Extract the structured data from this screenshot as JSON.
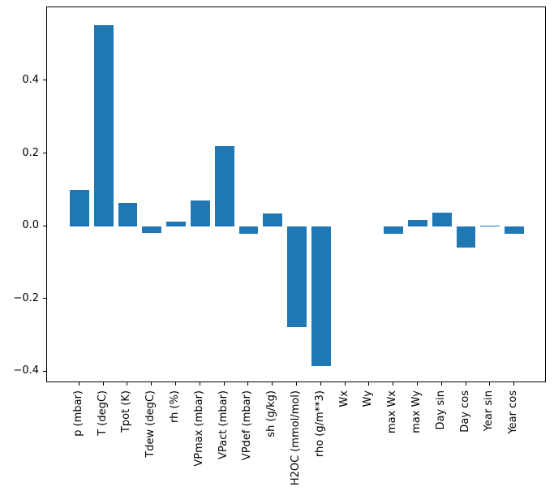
{
  "chart_data": {
    "type": "bar",
    "title": "",
    "xlabel": "",
    "ylabel": "",
    "categories": [
      "p (mbar)",
      "T (degC)",
      "Tpot (K)",
      "Tdew (degC)",
      "rh (%)",
      "VPmax (mbar)",
      "VPact (mbar)",
      "VPdef (mbar)",
      "sh (g/kg)",
      "H2OC (mmol/mol)",
      "rho (g/m**3)",
      "Wx",
      "Wy",
      "max Wx",
      "max Wy",
      "Day sin",
      "Day cos",
      "Year sin",
      "Year cos"
    ],
    "values": [
      0.099,
      0.553,
      0.064,
      -0.018,
      0.012,
      0.071,
      0.221,
      -0.022,
      0.034,
      -0.279,
      -0.386,
      0.0,
      0.0,
      -0.021,
      0.017,
      0.037,
      -0.058,
      0.002,
      -0.021
    ],
    "ytick_values": [
      0.4,
      0.2,
      0.0,
      -0.2,
      -0.4
    ],
    "ytick_labels": [
      "0.4",
      "0.2",
      "0.0",
      "−0.2",
      "−0.4"
    ],
    "ylim": [
      -0.432,
      0.602
    ],
    "xlim": [
      -1.34,
      19.34
    ],
    "bar_width_fraction": 0.8,
    "bar_color": "#1f77b4",
    "axis_color": "#000000",
    "background_color": "#ffffff",
    "grid": false,
    "legend": false
  }
}
